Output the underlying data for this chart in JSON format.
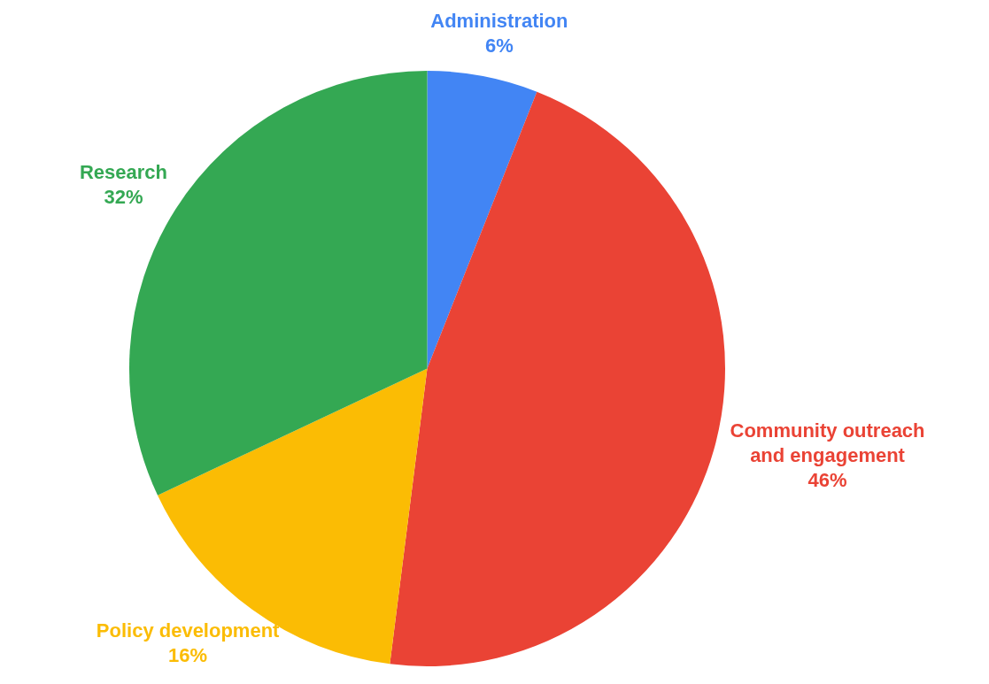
{
  "chart_data": {
    "type": "pie",
    "categories": [
      "Administration",
      "Community outreach and engagement",
      "Policy development",
      "Research"
    ],
    "values": [
      6,
      46,
      16,
      32
    ],
    "colors": [
      "#4285f4",
      "#ea4335",
      "#fbbc04",
      "#34a853"
    ],
    "value_labels": [
      "6%",
      "46%",
      "16%",
      "32%"
    ],
    "legend": false
  }
}
